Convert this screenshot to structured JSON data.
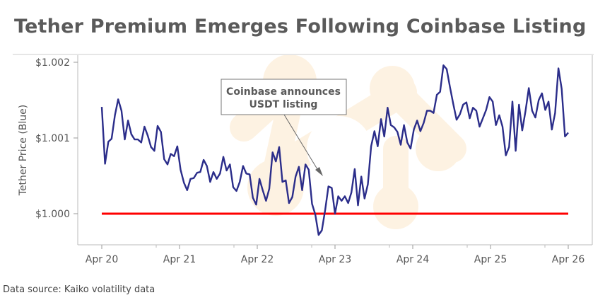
{
  "title": "Tether Premium Emerges Following Coinbase Listing",
  "source": "Data source: Kaiko volatility data",
  "chart_data": {
    "type": "line",
    "title": "Tether Premium Emerges Following Coinbase Listing",
    "ylabel": "Tether Price (Blue)",
    "xlabel": "",
    "x_ticks": [
      "Apr 20",
      "Apr 21",
      "Apr 22",
      "Apr 23",
      "Apr 24",
      "Apr 25",
      "Apr 26"
    ],
    "x_range": [
      "Apr 20",
      "Apr 26"
    ],
    "y_ticks": [
      {
        "value": 1.0,
        "label": "$1.000"
      },
      {
        "value": 1.001,
        "label": "$1.001"
      },
      {
        "value": 1.002,
        "label": "$1.002"
      }
    ],
    "ylim": [
      0.9996,
      1.00202
    ],
    "grid": false,
    "series": [
      {
        "color": "#2b2d8a",
        "x_start": "Apr 20",
        "x_end": "Apr 26",
        "values": [
          1.00141,
          1.00066,
          1.00095,
          1.00099,
          1.0013,
          1.00151,
          1.00136,
          1.00098,
          1.00123,
          1.00105,
          1.00098,
          1.00098,
          1.00094,
          1.00115,
          1.00103,
          1.00088,
          1.00083,
          1.00116,
          1.00108,
          1.00072,
          1.00065,
          1.00079,
          1.00076,
          1.00089,
          1.00058,
          1.00041,
          1.00031,
          1.00046,
          1.00047,
          1.00054,
          1.00055,
          1.00071,
          1.00063,
          1.00042,
          1.00055,
          1.00046,
          1.00053,
          1.00075,
          1.00057,
          1.00065,
          1.00035,
          1.0003,
          1.00042,
          1.00063,
          1.00053,
          1.00052,
          1.00021,
          1.00012,
          1.00046,
          1.00031,
          1.00017,
          1.00033,
          1.00081,
          1.00069,
          1.00088,
          1.00042,
          1.00044,
          1.00014,
          1.00022,
          1.00049,
          1.00062,
          1.00031,
          1.00065,
          1.00058,
          1.00013,
          0.99999,
          0.99972,
          0.99978,
          1.00005,
          1.00036,
          1.00034,
          1.0,
          1.00023,
          1.00017,
          1.00023,
          1.00014,
          1.00028,
          1.00059,
          1.00011,
          1.00049,
          1.0002,
          1.00039,
          1.00089,
          1.00109,
          1.00089,
          1.00125,
          1.00102,
          1.0014,
          1.00117,
          1.00114,
          1.00108,
          1.00091,
          1.00117,
          1.00094,
          1.00086,
          1.00111,
          1.00123,
          1.00109,
          1.0012,
          1.00136,
          1.00136,
          1.00133,
          1.00157,
          1.00161,
          1.00196,
          1.00191,
          1.00167,
          1.00145,
          1.00124,
          1.00131,
          1.00144,
          1.00147,
          1.00126,
          1.0014,
          1.00136,
          1.00115,
          1.00126,
          1.00137,
          1.00154,
          1.00148,
          1.00117,
          1.0013,
          1.00115,
          1.00077,
          1.00088,
          1.00148,
          1.00083,
          1.00144,
          1.0011,
          1.00136,
          1.00166,
          1.00136,
          1.00127,
          1.0015,
          1.00159,
          1.00137,
          1.00148,
          1.00111,
          1.00133,
          1.00192,
          1.00165,
          1.00102,
          1.00107
        ]
      }
    ],
    "reference_line": {
      "value": 1.0,
      "color": "#ff0000"
    },
    "annotation": {
      "text_line1": "Coinbase announces",
      "text_line2": "USDT listing",
      "points_to": "Apr 23"
    }
  }
}
